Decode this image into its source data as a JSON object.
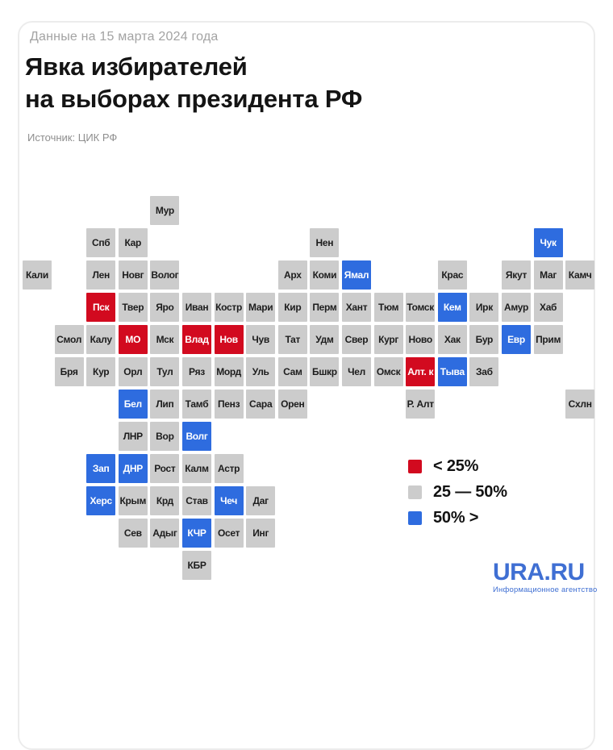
{
  "header": {
    "date_label": "Данные на 15 марта 2024 года",
    "title_line1": "Явка избирателей",
    "title_line2": "на выборах президента РФ",
    "source": "Источник: ЦИК РФ"
  },
  "colors": {
    "low": "#d20a1f",
    "mid": "#cccccc",
    "high": "#2e6cdf",
    "tile_text_dark": "#1d1d1d",
    "tile_text_light": "#ffffff",
    "logo_blue": "#3f6fd3"
  },
  "legend": {
    "items": [
      {
        "label": "< 25%",
        "cat": "low"
      },
      {
        "label": "25 — 50%",
        "cat": "mid"
      },
      {
        "label": "50% >",
        "cat": "high"
      }
    ]
  },
  "branding": {
    "logo": "URA.RU",
    "tagline": "Информационное агентство"
  },
  "chart_data": {
    "type": "heatmap",
    "subtype": "tile-grid-cartogram",
    "title": "Явка избирателей на выборах президента РФ",
    "date": "Данные на 15 марта 2024 года",
    "source": "Источник: ЦИК РФ",
    "legend": [
      "< 25%",
      "25 — 50%",
      "50% >"
    ],
    "category_labels": {
      "low": "< 25%",
      "mid": "25 — 50%",
      "high": "50% >"
    },
    "grid": {
      "columns": 18,
      "rows": 12
    },
    "tiles": [
      {
        "label": "Мур",
        "row": 0,
        "col": 4,
        "cat": "mid"
      },
      {
        "label": "Спб",
        "row": 1,
        "col": 2,
        "cat": "mid"
      },
      {
        "label": "Кар",
        "row": 1,
        "col": 3,
        "cat": "mid"
      },
      {
        "label": "Нен",
        "row": 1,
        "col": 9,
        "cat": "mid"
      },
      {
        "label": "Чук",
        "row": 1,
        "col": 16,
        "cat": "high"
      },
      {
        "label": "Кали",
        "row": 2,
        "col": 0,
        "cat": "mid"
      },
      {
        "label": "Лен",
        "row": 2,
        "col": 2,
        "cat": "mid"
      },
      {
        "label": "Новг",
        "row": 2,
        "col": 3,
        "cat": "mid"
      },
      {
        "label": "Волог",
        "row": 2,
        "col": 4,
        "cat": "mid"
      },
      {
        "label": "Арх",
        "row": 2,
        "col": 8,
        "cat": "mid"
      },
      {
        "label": "Коми",
        "row": 2,
        "col": 9,
        "cat": "mid"
      },
      {
        "label": "Ямал",
        "row": 2,
        "col": 10,
        "cat": "high"
      },
      {
        "label": "Крас",
        "row": 2,
        "col": 13,
        "cat": "mid"
      },
      {
        "label": "Якут",
        "row": 2,
        "col": 15,
        "cat": "mid"
      },
      {
        "label": "Маг",
        "row": 2,
        "col": 16,
        "cat": "mid"
      },
      {
        "label": "Камч",
        "row": 2,
        "col": 17,
        "cat": "mid"
      },
      {
        "label": "Пск",
        "row": 3,
        "col": 2,
        "cat": "low"
      },
      {
        "label": "Твер",
        "row": 3,
        "col": 3,
        "cat": "mid"
      },
      {
        "label": "Яро",
        "row": 3,
        "col": 4,
        "cat": "mid"
      },
      {
        "label": "Иван",
        "row": 3,
        "col": 5,
        "cat": "mid"
      },
      {
        "label": "Костр",
        "row": 3,
        "col": 6,
        "cat": "mid"
      },
      {
        "label": "Мари",
        "row": 3,
        "col": 7,
        "cat": "mid"
      },
      {
        "label": "Кир",
        "row": 3,
        "col": 8,
        "cat": "mid"
      },
      {
        "label": "Перм",
        "row": 3,
        "col": 9,
        "cat": "mid"
      },
      {
        "label": "Хант",
        "row": 3,
        "col": 10,
        "cat": "mid"
      },
      {
        "label": "Тюм",
        "row": 3,
        "col": 11,
        "cat": "mid"
      },
      {
        "label": "Томск",
        "row": 3,
        "col": 12,
        "cat": "mid"
      },
      {
        "label": "Кем",
        "row": 3,
        "col": 13,
        "cat": "high"
      },
      {
        "label": "Ирк",
        "row": 3,
        "col": 14,
        "cat": "mid"
      },
      {
        "label": "Амур",
        "row": 3,
        "col": 15,
        "cat": "mid"
      },
      {
        "label": "Хаб",
        "row": 3,
        "col": 16,
        "cat": "mid"
      },
      {
        "label": "Смол",
        "row": 4,
        "col": 1,
        "cat": "mid"
      },
      {
        "label": "Калу",
        "row": 4,
        "col": 2,
        "cat": "mid"
      },
      {
        "label": "МО",
        "row": 4,
        "col": 3,
        "cat": "low"
      },
      {
        "label": "Мск",
        "row": 4,
        "col": 4,
        "cat": "mid"
      },
      {
        "label": "Влад",
        "row": 4,
        "col": 5,
        "cat": "low"
      },
      {
        "label": "Нов",
        "row": 4,
        "col": 6,
        "cat": "low"
      },
      {
        "label": "Чув",
        "row": 4,
        "col": 7,
        "cat": "mid"
      },
      {
        "label": "Тат",
        "row": 4,
        "col": 8,
        "cat": "mid"
      },
      {
        "label": "Удм",
        "row": 4,
        "col": 9,
        "cat": "mid"
      },
      {
        "label": "Свер",
        "row": 4,
        "col": 10,
        "cat": "mid"
      },
      {
        "label": "Кург",
        "row": 4,
        "col": 11,
        "cat": "mid"
      },
      {
        "label": "Ново",
        "row": 4,
        "col": 12,
        "cat": "mid"
      },
      {
        "label": "Хак",
        "row": 4,
        "col": 13,
        "cat": "mid"
      },
      {
        "label": "Бур",
        "row": 4,
        "col": 14,
        "cat": "mid"
      },
      {
        "label": "Евр",
        "row": 4,
        "col": 15,
        "cat": "high"
      },
      {
        "label": "Прим",
        "row": 4,
        "col": 16,
        "cat": "mid"
      },
      {
        "label": "Бря",
        "row": 5,
        "col": 1,
        "cat": "mid"
      },
      {
        "label": "Кур",
        "row": 5,
        "col": 2,
        "cat": "mid"
      },
      {
        "label": "Орл",
        "row": 5,
        "col": 3,
        "cat": "mid"
      },
      {
        "label": "Тул",
        "row": 5,
        "col": 4,
        "cat": "mid"
      },
      {
        "label": "Ряз",
        "row": 5,
        "col": 5,
        "cat": "mid"
      },
      {
        "label": "Морд",
        "row": 5,
        "col": 6,
        "cat": "mid"
      },
      {
        "label": "Уль",
        "row": 5,
        "col": 7,
        "cat": "mid"
      },
      {
        "label": "Сам",
        "row": 5,
        "col": 8,
        "cat": "mid"
      },
      {
        "label": "Бшкр",
        "row": 5,
        "col": 9,
        "cat": "mid"
      },
      {
        "label": "Чел",
        "row": 5,
        "col": 10,
        "cat": "mid"
      },
      {
        "label": "Омск",
        "row": 5,
        "col": 11,
        "cat": "mid"
      },
      {
        "label": "Алт. к",
        "row": 5,
        "col": 12,
        "cat": "low"
      },
      {
        "label": "Тыва",
        "row": 5,
        "col": 13,
        "cat": "high"
      },
      {
        "label": "Заб",
        "row": 5,
        "col": 14,
        "cat": "mid"
      },
      {
        "label": "Бел",
        "row": 6,
        "col": 3,
        "cat": "high"
      },
      {
        "label": "Лип",
        "row": 6,
        "col": 4,
        "cat": "mid"
      },
      {
        "label": "Тамб",
        "row": 6,
        "col": 5,
        "cat": "mid"
      },
      {
        "label": "Пенз",
        "row": 6,
        "col": 6,
        "cat": "mid"
      },
      {
        "label": "Сара",
        "row": 6,
        "col": 7,
        "cat": "mid"
      },
      {
        "label": "Орен",
        "row": 6,
        "col": 8,
        "cat": "mid"
      },
      {
        "label": "Р. Алт",
        "row": 6,
        "col": 12,
        "cat": "mid"
      },
      {
        "label": "Схлн",
        "row": 6,
        "col": 17,
        "cat": "mid"
      },
      {
        "label": "ЛНР",
        "row": 7,
        "col": 3,
        "cat": "mid"
      },
      {
        "label": "Вор",
        "row": 7,
        "col": 4,
        "cat": "mid"
      },
      {
        "label": "Волг",
        "row": 7,
        "col": 5,
        "cat": "high"
      },
      {
        "label": "Зап",
        "row": 8,
        "col": 2,
        "cat": "high"
      },
      {
        "label": "ДНР",
        "row": 8,
        "col": 3,
        "cat": "high"
      },
      {
        "label": "Рост",
        "row": 8,
        "col": 4,
        "cat": "mid"
      },
      {
        "label": "Калм",
        "row": 8,
        "col": 5,
        "cat": "mid"
      },
      {
        "label": "Астр",
        "row": 8,
        "col": 6,
        "cat": "mid"
      },
      {
        "label": "Херс",
        "row": 9,
        "col": 2,
        "cat": "high"
      },
      {
        "label": "Крым",
        "row": 9,
        "col": 3,
        "cat": "mid"
      },
      {
        "label": "Крд",
        "row": 9,
        "col": 4,
        "cat": "mid"
      },
      {
        "label": "Став",
        "row": 9,
        "col": 5,
        "cat": "mid"
      },
      {
        "label": "Чеч",
        "row": 9,
        "col": 6,
        "cat": "high"
      },
      {
        "label": "Даг",
        "row": 9,
        "col": 7,
        "cat": "mid"
      },
      {
        "label": "Сев",
        "row": 10,
        "col": 3,
        "cat": "mid"
      },
      {
        "label": "Адыг",
        "row": 10,
        "col": 4,
        "cat": "mid"
      },
      {
        "label": "КЧР",
        "row": 10,
        "col": 5,
        "cat": "high"
      },
      {
        "label": "Осет",
        "row": 10,
        "col": 6,
        "cat": "mid"
      },
      {
        "label": "Инг",
        "row": 10,
        "col": 7,
        "cat": "mid"
      },
      {
        "label": "КБР",
        "row": 11,
        "col": 5,
        "cat": "mid"
      }
    ]
  }
}
